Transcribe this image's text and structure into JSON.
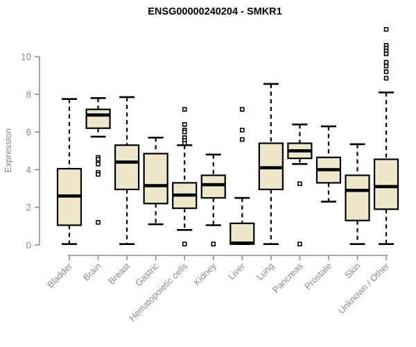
{
  "chart_data": {
    "type": "boxplot",
    "title": "ENSG00000240204 - SMKR1",
    "ylabel": "Expression",
    "xlabel": "",
    "ylim": [
      0,
      11.5
    ],
    "yticks": [
      0,
      2,
      4,
      6,
      8,
      10
    ],
    "grid": false,
    "legend": "none",
    "colors": {
      "box_fill": "#EDE8CC",
      "box_stroke": "#000000",
      "median": "#000000",
      "whisker": "#000000",
      "outlier_stroke": "#000000",
      "outlier_fill": "#ffffff",
      "axis": "#8a8a8a",
      "tick_label": "#8a8a8a",
      "title": "#000000"
    },
    "categories": [
      "Bladder",
      "Brain",
      "Breast",
      "Gastric",
      "Hematopoietic cells",
      "Kidney",
      "Liver",
      "Lung",
      "Pancreas",
      "Prostate",
      "Skin",
      "Unknown / Other"
    ],
    "series": [
      {
        "name": "Bladder",
        "low": 0.05,
        "q1": 1.05,
        "median": 2.6,
        "q3": 4.05,
        "high": 7.75,
        "outliers": []
      },
      {
        "name": "Brain",
        "low": 5.75,
        "q1": 6.2,
        "median": 6.9,
        "q3": 7.2,
        "high": 7.8,
        "outliers": [
          4.65,
          4.55,
          4.3,
          3.85,
          3.75,
          1.2
        ]
      },
      {
        "name": "Breast",
        "low": 0.05,
        "q1": 2.95,
        "median": 4.4,
        "q3": 5.3,
        "high": 7.85,
        "outliers": []
      },
      {
        "name": "Gastric",
        "low": 1.1,
        "q1": 2.2,
        "median": 3.15,
        "q3": 4.85,
        "high": 5.7,
        "outliers": []
      },
      {
        "name": "Hematopoietic cells",
        "low": 0.8,
        "q1": 1.95,
        "median": 2.65,
        "q3": 3.3,
        "high": 5.3,
        "outliers": [
          7.2,
          6.4,
          6.1,
          6.0,
          5.7,
          5.55,
          5.4,
          0.05
        ]
      },
      {
        "name": "Kidney",
        "low": 1.05,
        "q1": 2.5,
        "median": 3.2,
        "q3": 3.7,
        "high": 4.8,
        "outliers": [
          0.05
        ]
      },
      {
        "name": "Liver",
        "low": 0.05,
        "q1": 0.05,
        "median": 0.1,
        "q3": 1.15,
        "high": 2.5,
        "outliers": [
          7.2,
          6.1,
          5.6
        ]
      },
      {
        "name": "Lung",
        "low": 0.05,
        "q1": 2.95,
        "median": 4.1,
        "q3": 5.4,
        "high": 8.55,
        "outliers": []
      },
      {
        "name": "Pancreas",
        "low": 4.3,
        "q1": 4.6,
        "median": 5.0,
        "q3": 5.4,
        "high": 6.4,
        "outliers": [
          3.25,
          0.05
        ]
      },
      {
        "name": "Prostate",
        "low": 2.3,
        "q1": 3.3,
        "median": 4.0,
        "q3": 4.65,
        "high": 6.3,
        "outliers": []
      },
      {
        "name": "Skin",
        "low": 0.05,
        "q1": 1.3,
        "median": 2.9,
        "q3": 3.7,
        "high": 5.35,
        "outliers": []
      },
      {
        "name": "Unknown / Other",
        "low": 0.05,
        "q1": 1.9,
        "median": 3.1,
        "q3": 4.55,
        "high": 8.1,
        "outliers": [
          11.45,
          10.6,
          10.45,
          10.3,
          10.15,
          9.7,
          9.5,
          9.2,
          8.85
        ]
      }
    ]
  }
}
